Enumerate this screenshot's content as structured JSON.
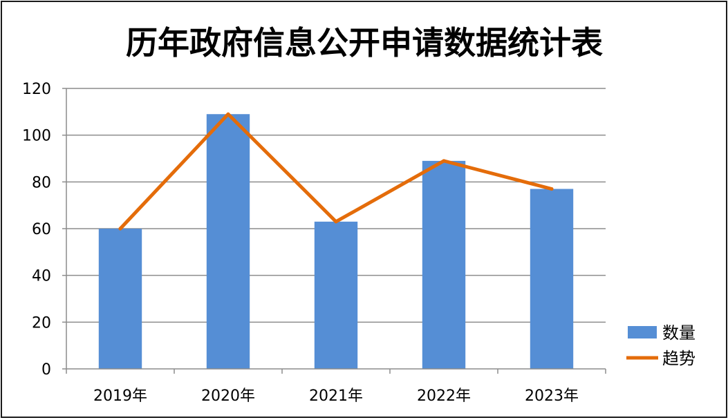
{
  "chart_data": {
    "type": "bar",
    "title": "历年政府信息公开申请数据统计表",
    "categories": [
      "2019年",
      "2020年",
      "2021年",
      "2022年",
      "2023年"
    ],
    "series": [
      {
        "name": "数量",
        "type": "bar",
        "values": [
          60,
          109,
          63,
          89,
          77
        ],
        "color": "#558ed5"
      },
      {
        "name": "趋势",
        "type": "line",
        "values": [
          60,
          109,
          63,
          89,
          77
        ],
        "color": "#e46c0a"
      }
    ],
    "ylim": [
      0,
      120
    ],
    "yticks": [
      0,
      20,
      40,
      60,
      80,
      100,
      120
    ],
    "grid": true,
    "legend_position": "bottom-right",
    "xlabel": "",
    "ylabel": ""
  }
}
